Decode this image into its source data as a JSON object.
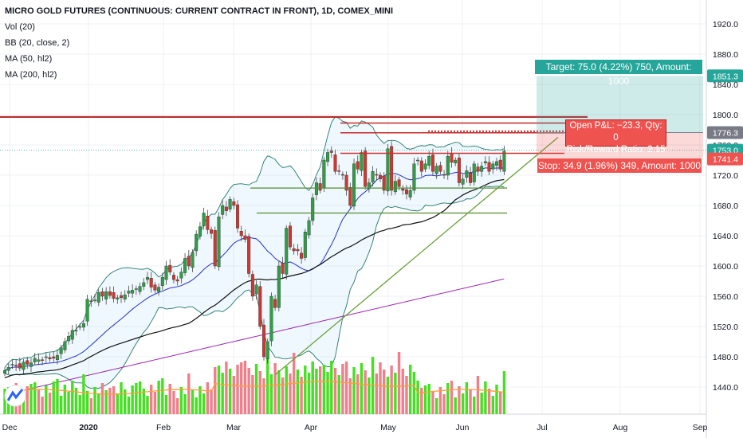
{
  "chart_data": {
    "type": "candlestick",
    "title": "MICRO GOLD FUTURES (CONTINUOUS: CURRENT CONTRACT IN FRONT), 1D, COMEX_MINI",
    "indicators": [
      "Vol (20)",
      "BB (20, close, 2)",
      "MA (50, hl2)",
      "MA (200, hl2)"
    ],
    "y_axis": {
      "ticks": [
        1440,
        1480,
        1520,
        1560,
        1600,
        1640,
        1680,
        1720,
        1760,
        1800,
        1840,
        1880,
        1920
      ],
      "range": [
        1405,
        1950
      ],
      "side": "right"
    },
    "x_axis": {
      "ticks": [
        "Dec",
        "2020",
        "Feb",
        "Mar",
        "Apr",
        "May",
        "Jun",
        "Jul",
        "Aug",
        "Sep"
      ]
    },
    "price_labels": [
      {
        "value": 1851.3,
        "text": "1851.3",
        "color": "#26a69a"
      },
      {
        "value": 1776.3,
        "text": "1776.3",
        "color": "#787b86"
      },
      {
        "value": 1753.0,
        "text": "1753.0",
        "color": "#26a69a"
      },
      {
        "value": 1741.4,
        "text": "1741.4",
        "color": "#ef5350"
      }
    ],
    "position": {
      "entry": 1776.3,
      "target": 1851.3,
      "stop": 1741.4,
      "target_label": "Target: 75.0 (4.22%) 750, Amount: 1000",
      "stop_label": "Stop: 34.9 (1.96%) 349, Amount: 1000",
      "pnl_label": "Open P&L: −23.3, Qty: 0",
      "rr_label": "Risk/Reward Ratio: 2.15"
    },
    "horizontal_lines": [
      {
        "value": 1797,
        "color": "#b71c1c"
      },
      {
        "value": 1789,
        "color": "#c62828"
      },
      {
        "value": 1776,
        "color": "#c62828"
      },
      {
        "value": 1749,
        "color": "#d32f2f"
      },
      {
        "value": 1703,
        "color": "#558b2f"
      },
      {
        "value": 1670,
        "color": "#558b2f"
      }
    ],
    "candles_close": [
      1462,
      1466,
      1470,
      1468,
      1465,
      1473,
      1470,
      1472,
      1478,
      1476,
      1475,
      1480,
      1477,
      1478,
      1482,
      1492,
      1500,
      1507,
      1515,
      1515,
      1520,
      1524,
      1556,
      1553,
      1555,
      1565,
      1560,
      1566,
      1561,
      1557,
      1558,
      1558,
      1562,
      1567,
      1568,
      1570,
      1573,
      1578,
      1585,
      1572,
      1568,
      1572,
      1585,
      1600,
      1592,
      1582,
      1580,
      1592,
      1610,
      1600,
      1618,
      1642,
      1652,
      1670,
      1648,
      1643,
      1600,
      1665,
      1680,
      1673,
      1688,
      1680,
      1650,
      1640,
      1635,
      1590,
      1560,
      1575,
      1520,
      1480,
      1500,
      1560,
      1545,
      1600,
      1590,
      1650,
      1625,
      1620,
      1620,
      1610,
      1645,
      1660,
      1690,
      1710,
      1700,
      1740,
      1750,
      1750,
      1725,
      1725,
      1720,
      1700,
      1680,
      1735,
      1728,
      1750,
      1705,
      1710,
      1725,
      1720,
      1715,
      1700,
      1755,
      1700,
      1712,
      1705,
      1700,
      1695,
      1700,
      1735,
      1740,
      1725,
      1735,
      1745,
      1725,
      1732,
      1725,
      1720,
      1745,
      1737,
      1740,
      1710,
      1715,
      1726,
      1710,
      1735,
      1725,
      1732,
      1738,
      1725,
      1735,
      1738,
      1728,
      1752
    ],
    "volume_note": "daily volume bars with 20-period average"
  }
}
